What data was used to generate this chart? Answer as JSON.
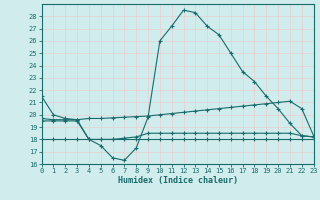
{
  "xlabel": "Humidex (Indice chaleur)",
  "x": [
    0,
    1,
    2,
    3,
    4,
    5,
    6,
    7,
    8,
    9,
    10,
    11,
    12,
    13,
    14,
    15,
    16,
    17,
    18,
    19,
    20,
    21,
    22,
    23
  ],
  "line1": [
    21.5,
    20.0,
    19.7,
    19.6,
    18.0,
    17.5,
    16.5,
    16.3,
    17.3,
    19.8,
    26.0,
    27.2,
    28.5,
    28.3,
    27.2,
    26.5,
    25.0,
    23.5,
    22.7,
    21.5,
    20.5,
    19.3,
    18.3,
    18.2
  ],
  "line2": [
    19.7,
    19.6,
    19.6,
    19.6,
    19.7,
    19.7,
    19.75,
    19.8,
    19.85,
    19.9,
    20.0,
    20.1,
    20.2,
    20.3,
    20.4,
    20.5,
    20.6,
    20.7,
    20.8,
    20.9,
    21.0,
    21.1,
    20.5,
    18.3
  ],
  "line3": [
    19.5,
    19.5,
    19.5,
    19.5,
    18.0,
    18.0,
    18.0,
    18.1,
    18.2,
    18.5,
    18.5,
    18.5,
    18.5,
    18.5,
    18.5,
    18.5,
    18.5,
    18.5,
    18.5,
    18.5,
    18.5,
    18.5,
    18.3,
    18.2
  ],
  "line4": [
    18.0,
    18.0,
    18.0,
    18.0,
    18.0,
    18.0,
    18.0,
    18.0,
    18.0,
    18.0,
    18.0,
    18.0,
    18.0,
    18.0,
    18.0,
    18.0,
    18.0,
    18.0,
    18.0,
    18.0,
    18.0,
    18.0,
    18.0,
    18.0
  ],
  "ylim": [
    16,
    29
  ],
  "xlim": [
    0,
    23
  ],
  "yticks": [
    16,
    17,
    18,
    19,
    20,
    21,
    22,
    23,
    24,
    25,
    26,
    27,
    28
  ],
  "xticks": [
    0,
    1,
    2,
    3,
    4,
    5,
    6,
    7,
    8,
    9,
    10,
    11,
    12,
    13,
    14,
    15,
    16,
    17,
    18,
    19,
    20,
    21,
    22,
    23
  ],
  "bg_color": "#d0ecec",
  "grid_color": "#e8d0d0",
  "line_color": "#1a6b6b",
  "marker": "+",
  "markersize": 3,
  "lw": 0.8
}
